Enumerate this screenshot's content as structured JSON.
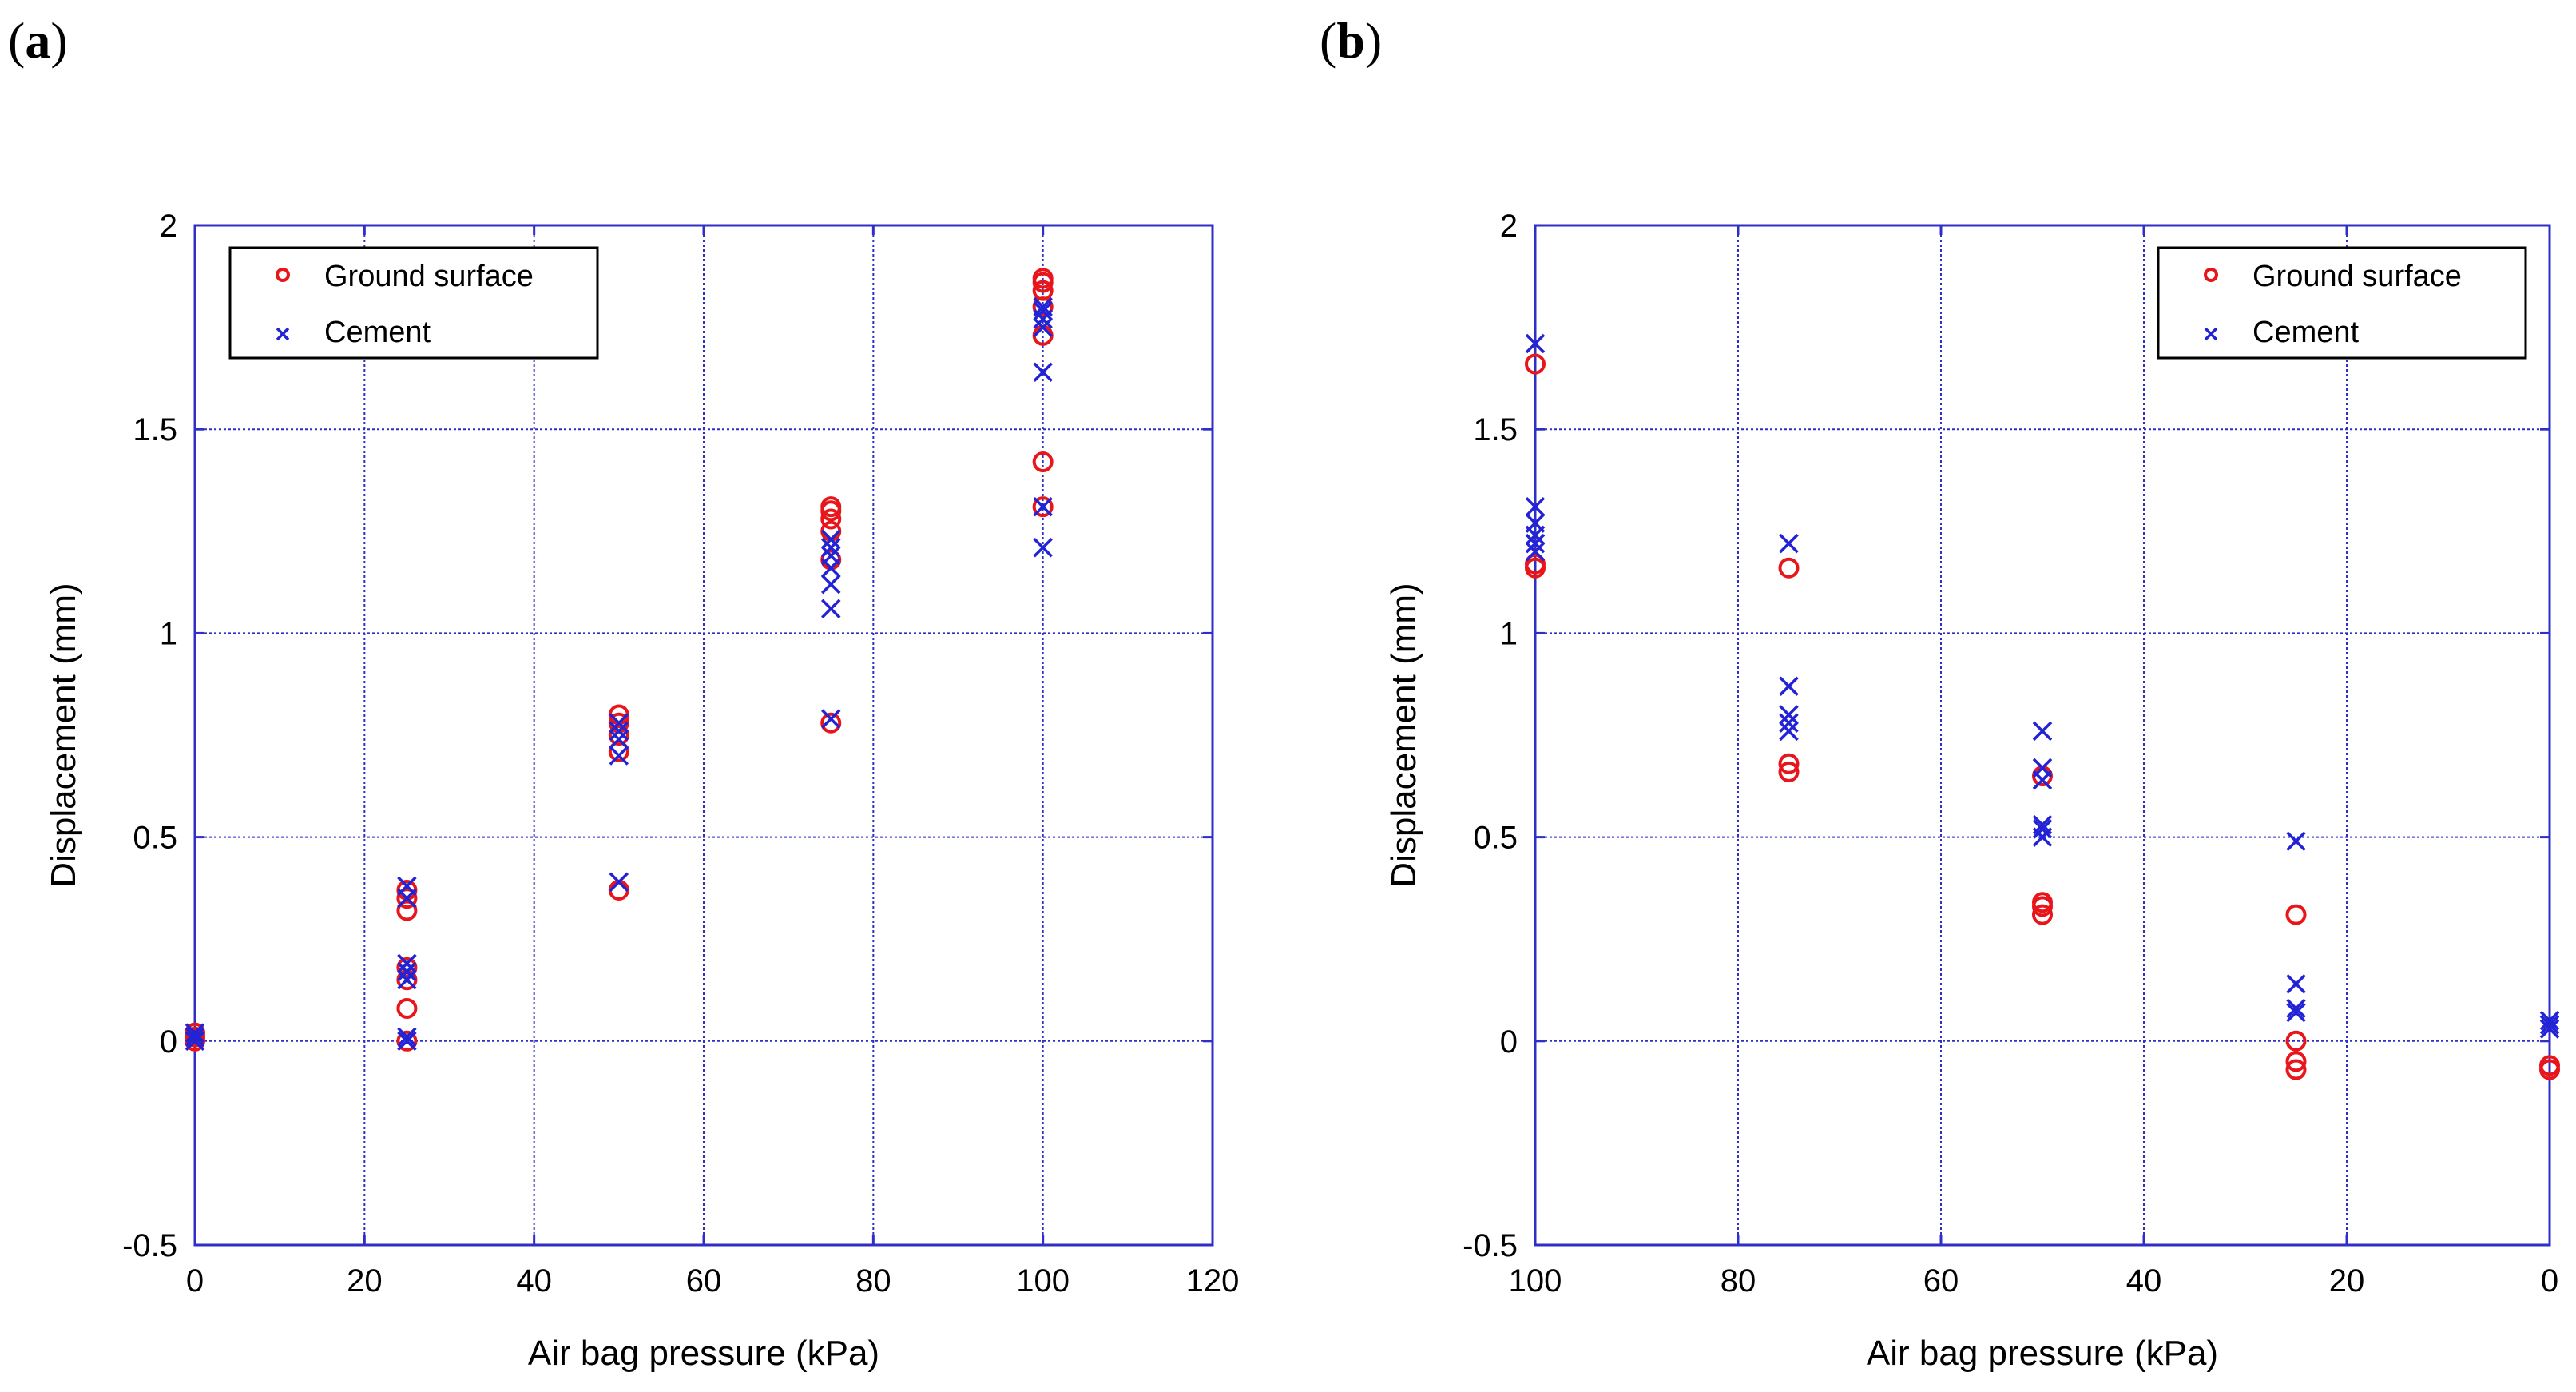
{
  "panels": {
    "a": {
      "label_open": "(",
      "label_letter": "a",
      "label_close": ")"
    },
    "b": {
      "label_open": "(",
      "label_letter": "b",
      "label_close": ")"
    }
  },
  "colors": {
    "axis": "#2f2fc8",
    "ground": "#e8161b",
    "cement": "#2323d6"
  },
  "chart_data": [
    {
      "id": "a",
      "type": "scatter",
      "xlabel": "Air bag pressure (kPa)",
      "ylabel": "Displacement (mm)",
      "xlim": [
        0,
        120
      ],
      "ylim": [
        -0.5,
        2
      ],
      "x_reversed": false,
      "xticks": [
        0,
        20,
        40,
        60,
        80,
        100,
        120
      ],
      "xtick_labels": [
        "0",
        "20",
        "40",
        "60",
        "80",
        "100",
        "120"
      ],
      "yticks": [
        -0.5,
        0,
        0.5,
        1,
        1.5,
        2
      ],
      "ytick_labels": [
        "-0.5",
        "0",
        "0.5",
        "1",
        "1.5",
        "2"
      ],
      "grid": true,
      "legend_position": "top-left",
      "series": [
        {
          "name": "Ground surface",
          "marker": "circle",
          "x": [
            0,
            0,
            0,
            25,
            25,
            25,
            25,
            25,
            25,
            25,
            50,
            50,
            50,
            50,
            50,
            75,
            75,
            75,
            75,
            75,
            75,
            100,
            100,
            100,
            100,
            100,
            100,
            100
          ],
          "y": [
            0,
            0.01,
            0.02,
            0.0,
            0.08,
            0.15,
            0.18,
            0.32,
            0.35,
            0.37,
            0.37,
            0.71,
            0.75,
            0.78,
            0.8,
            0.78,
            1.18,
            1.25,
            1.28,
            1.3,
            1.31,
            1.31,
            1.42,
            1.73,
            1.8,
            1.84,
            1.86,
            1.87
          ]
        },
        {
          "name": "Cement",
          "marker": "x",
          "x": [
            0,
            0,
            0,
            25,
            25,
            25,
            25,
            25,
            25,
            25,
            50,
            50,
            50,
            50,
            50,
            75,
            75,
            75,
            75,
            75,
            75,
            75,
            100,
            100,
            100,
            100,
            100,
            100,
            100
          ],
          "y": [
            0,
            0.01,
            0.02,
            0.0,
            0.01,
            0.15,
            0.17,
            0.19,
            0.35,
            0.38,
            0.39,
            0.7,
            0.74,
            0.76,
            0.78,
            0.79,
            1.06,
            1.12,
            1.16,
            1.19,
            1.21,
            1.23,
            1.21,
            1.31,
            1.64,
            1.75,
            1.77,
            1.79,
            1.8
          ]
        }
      ]
    },
    {
      "id": "b",
      "type": "scatter",
      "xlabel": "Air bag pressure (kPa)",
      "ylabel": "Displacement (mm)",
      "xlim": [
        100,
        0
      ],
      "ylim": [
        -0.5,
        2
      ],
      "x_reversed": true,
      "xticks": [
        100,
        80,
        60,
        40,
        20,
        0
      ],
      "xtick_labels": [
        "100",
        "80",
        "60",
        "40",
        "20",
        "0"
      ],
      "yticks": [
        -0.5,
        0,
        0.5,
        1,
        1.5,
        2
      ],
      "ytick_labels": [
        "-0.5",
        "0",
        "0.5",
        "1",
        "1.5",
        "2"
      ],
      "grid": true,
      "legend_position": "top-right",
      "series": [
        {
          "name": "Ground surface",
          "marker": "circle",
          "x": [
            100,
            100,
            100,
            75,
            75,
            75,
            50,
            50,
            50,
            50,
            25,
            25,
            25,
            25,
            0,
            0
          ],
          "y": [
            1.16,
            1.17,
            1.66,
            0.66,
            0.68,
            1.16,
            0.31,
            0.33,
            0.34,
            0.65,
            -0.07,
            -0.05,
            0.0,
            0.31,
            -0.07,
            -0.06
          ]
        },
        {
          "name": "Cement",
          "marker": "x",
          "x": [
            100,
            100,
            100,
            100,
            100,
            100,
            75,
            75,
            75,
            75,
            75,
            50,
            50,
            50,
            50,
            50,
            50,
            25,
            25,
            25,
            25,
            0,
            0,
            0
          ],
          "y": [
            1.2,
            1.22,
            1.24,
            1.27,
            1.31,
            1.71,
            0.76,
            0.78,
            0.8,
            0.87,
            1.22,
            0.5,
            0.52,
            0.53,
            0.64,
            0.67,
            0.76,
            0.07,
            0.08,
            0.14,
            0.49,
            0.03,
            0.04,
            0.05
          ]
        }
      ]
    }
  ]
}
